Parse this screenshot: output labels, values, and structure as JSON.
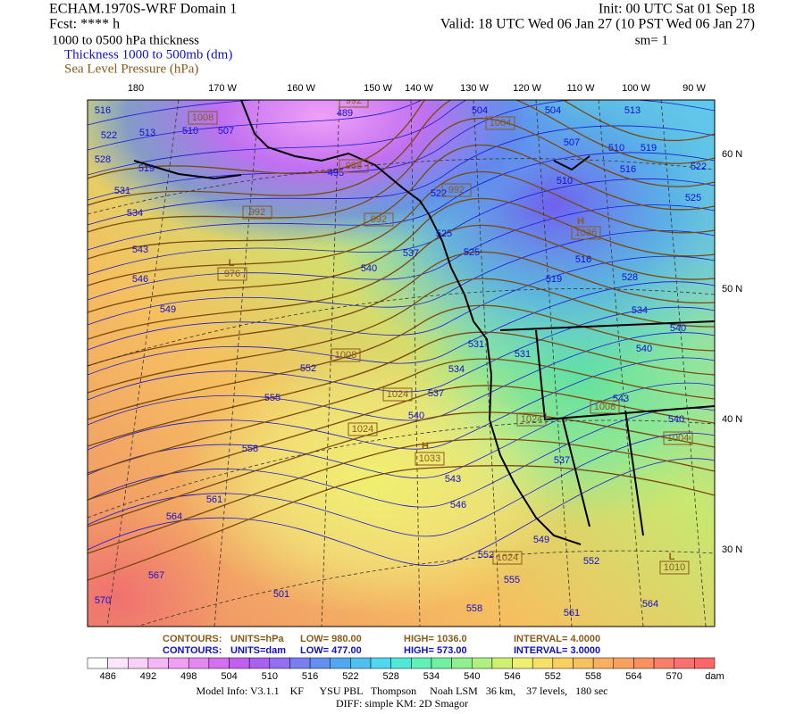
{
  "header": {
    "model": "ECHAM.1970S-WRF Domain 1",
    "forecast": "Fcst: **** h",
    "init": "Init: 00 UTC Sat 01 Sep 18",
    "valid": "Valid: 18 UTC Wed 06 Jan 27 (10 PST Wed 06 Jan 27)",
    "field": "1000 to 0500 hPa thickness",
    "smoothing": "sm= 1",
    "legend": [
      "Thickness 1000 to 500mb (dm)",
      "Sea Level Pressure (hPa)"
    ]
  },
  "map": {
    "longitudes": [
      "180",
      "170 W",
      "160 W",
      "150 W",
      "140 W",
      "130 W",
      "120 W",
      "110 W",
      "100 W",
      "90 W"
    ],
    "latitudes": [
      "60 N",
      "50 N",
      "40 N",
      "30 N"
    ],
    "thickness_labels": [
      "516",
      "513",
      "510",
      "507",
      "522",
      "528",
      "519",
      "531",
      "534",
      "543",
      "546",
      "549",
      "552",
      "555",
      "558",
      "561",
      "564",
      "567",
      "570",
      "501",
      "540",
      "537",
      "537",
      "534",
      "531",
      "540",
      "543",
      "546",
      "549",
      "552",
      "555",
      "558",
      "561",
      "564",
      "552",
      "537",
      "540",
      "543",
      "540",
      "540",
      "534",
      "528",
      "516",
      "519",
      "525",
      "525",
      "516",
      "510",
      "519",
      "513",
      "522",
      "507",
      "510",
      "504",
      "504",
      "522",
      "525",
      "489",
      "495",
      "531"
    ],
    "pressure_labels": [
      "1008",
      "1004",
      "992",
      "988",
      "992",
      "992",
      "992",
      "976",
      "1008",
      "1024",
      "1024",
      "1033",
      "1024",
      "1036",
      "1008",
      "1004",
      "1024",
      "1010"
    ],
    "centers": [
      "H",
      "L",
      "H",
      "L"
    ]
  },
  "contours": [
    {
      "label": "CONTOURS:",
      "units": "UNITS=hPa",
      "low": "LOW=  980.00",
      "high": "HIGH= 1036.0",
      "interval": "INTERVAL=    4.0000"
    },
    {
      "label": "CONTOURS:",
      "units": "UNITS=dam",
      "low": "LOW=  477.00",
      "high": "HIGH=  573.00",
      "interval": "INTERVAL=    3.0000"
    }
  ],
  "colorbar": {
    "levels": [
      "486",
      "492",
      "498",
      "504",
      "510",
      "516",
      "522",
      "528",
      "534",
      "540",
      "546",
      "552",
      "558",
      "564",
      "570"
    ],
    "unit": "dam"
  },
  "footer": {
    "model_info": "Model Info: V3.1.1    KF      YSU PBL   Thompson     Noah LSM   36 km,    37 levels,   180 sec",
    "diff": "DIFF: simple KM: 2D Smagor"
  }
}
